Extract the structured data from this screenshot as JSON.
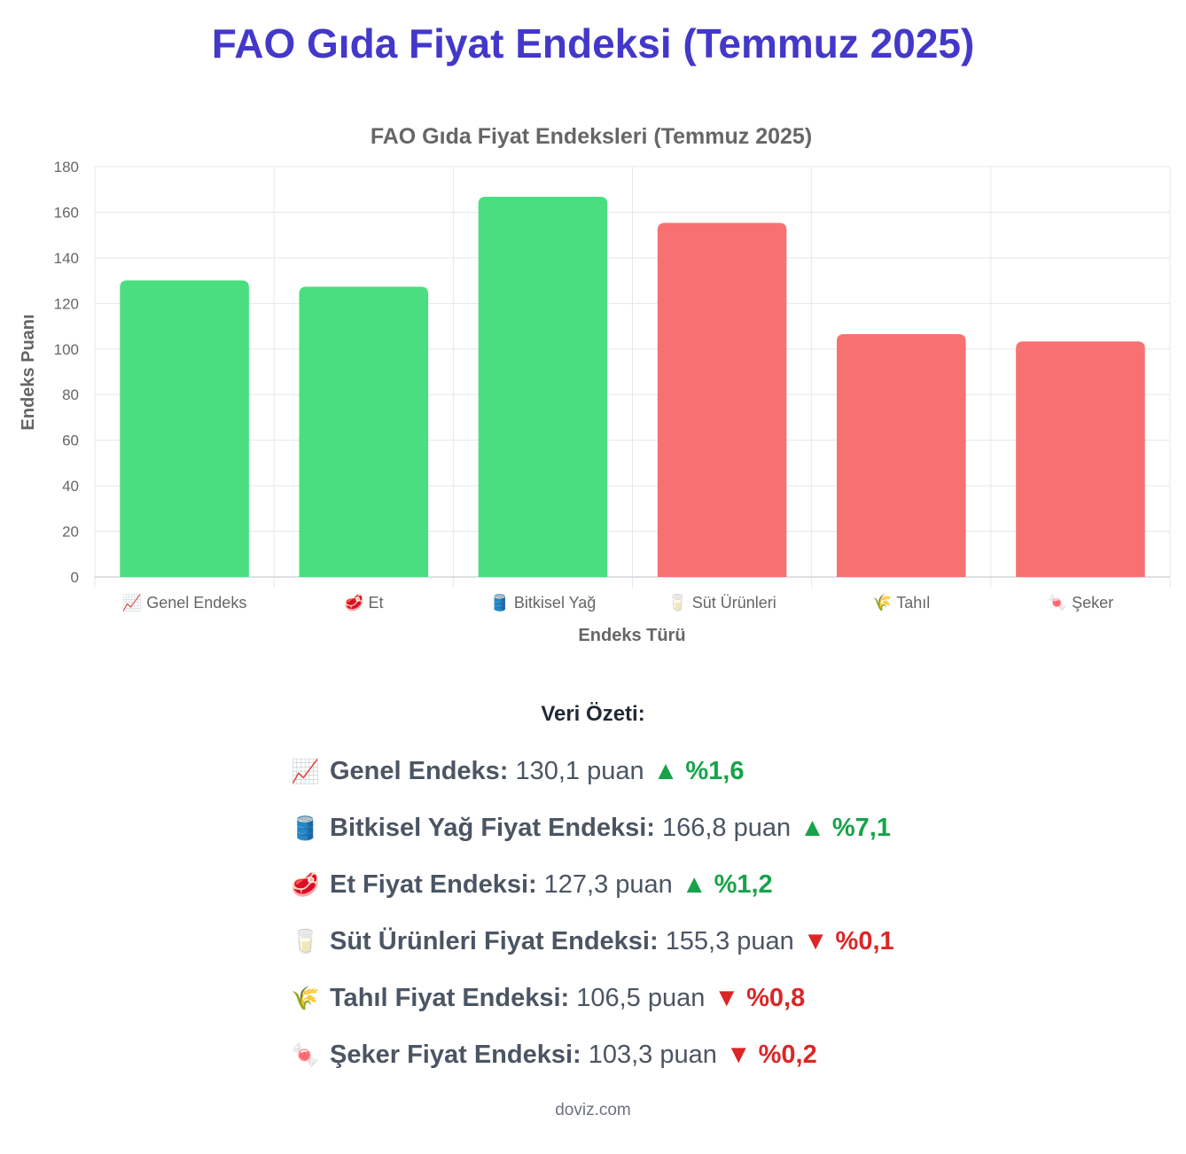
{
  "page": {
    "title": "FAO Gıda Fiyat Endeksi (Temmuz 2025)",
    "footer": "doviz.com"
  },
  "colors": {
    "title": "#4338ca",
    "up": "#4ade80",
    "down": "#f87171",
    "up_text": "#16a34a",
    "down_text": "#dc2626",
    "grid": "#e5e7eb",
    "axis_text": "#666666"
  },
  "chart_data": {
    "type": "bar",
    "title": "FAO Gıda Fiyat Endeksleri (Temmuz 2025)",
    "xlabel": "Endeks Türü",
    "ylabel": "Endeks Puanı",
    "ylim": [
      0,
      180
    ],
    "yticks": [
      0,
      20,
      40,
      60,
      80,
      100,
      120,
      140,
      160,
      180
    ],
    "grid": true,
    "legend": "none",
    "categories": [
      {
        "icon": "📈",
        "label": "Genel Endeks",
        "value": 130.1,
        "trend": "up"
      },
      {
        "icon": "🥩",
        "label": "Et",
        "value": 127.3,
        "trend": "up"
      },
      {
        "icon": "🛢️",
        "label": "Bitkisel Yağ",
        "value": 166.8,
        "trend": "up"
      },
      {
        "icon": "🥛",
        "label": "Süt Ürünleri",
        "value": 155.3,
        "trend": "down"
      },
      {
        "icon": "🌾",
        "label": "Tahıl",
        "value": 106.5,
        "trend": "down"
      },
      {
        "icon": "🍬",
        "label": "Şeker",
        "value": 103.3,
        "trend": "down"
      }
    ]
  },
  "summary": {
    "heading": "Veri Özeti:",
    "items": [
      {
        "icon": "📈",
        "label": "Genel Endeks:",
        "value": "130,1 puan",
        "change": "▲ %1,6",
        "trend": "up"
      },
      {
        "icon": "🛢️",
        "label": "Bitkisel Yağ Fiyat Endeksi:",
        "value": "166,8 puan",
        "change": "▲ %7,1",
        "trend": "up"
      },
      {
        "icon": "🥩",
        "label": "Et Fiyat Endeksi:",
        "value": "127,3 puan",
        "change": "▲ %1,2",
        "trend": "up"
      },
      {
        "icon": "🥛",
        "label": "Süt Ürünleri Fiyat Endeksi:",
        "value": "155,3 puan",
        "change": "▼ %0,1",
        "trend": "down"
      },
      {
        "icon": "🌾",
        "label": "Tahıl Fiyat Endeksi:",
        "value": "106,5 puan",
        "change": "▼ %0,8",
        "trend": "down"
      },
      {
        "icon": "🍬",
        "label": "Şeker Fiyat Endeksi:",
        "value": "103,3 puan",
        "change": "▼ %0,2",
        "trend": "down"
      }
    ]
  }
}
